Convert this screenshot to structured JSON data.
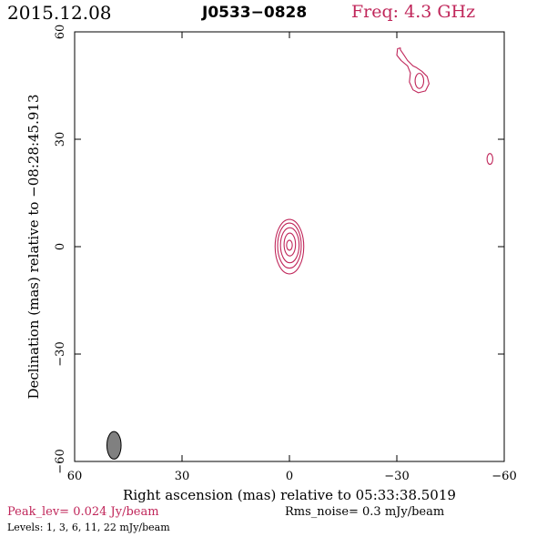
{
  "header": {
    "date": "2015.12.08",
    "source": "J0533−0828",
    "freq": "Freq: 4.3 GHz"
  },
  "footer": {
    "peak": "Peak_lev=  0.024 Jy/beam",
    "noise": "Rms_noise=  0.3 mJy/beam",
    "levels": "Levels:   1,   3,   6,  11,  22 mJy/beam"
  },
  "colors": {
    "contour": "#c0265a",
    "beam_fill": "#808080",
    "axis": "#000000"
  },
  "chart_data": {
    "type": "contour",
    "title": "J0533−0828",
    "xlabel": "Right ascension (mas) relative to 05:33:38.5019",
    "ylabel": "Declination (mas) relative to −08:28:45.913",
    "xlim": [
      60,
      -60
    ],
    "ylim": [
      -60,
      60
    ],
    "xticks": [
      60,
      30,
      0,
      -30,
      -60
    ],
    "yticks": [
      60,
      30,
      0,
      -30,
      -60
    ],
    "xtick_labels": [
      "60",
      "30",
      "0",
      "−30",
      "−60"
    ],
    "ytick_labels": [
      "60",
      "30",
      "0",
      "−30",
      "−60"
    ],
    "contour_levels_mJy": [
      1,
      3,
      6,
      11,
      22
    ],
    "components": [
      {
        "name": "core",
        "contours": [
          {
            "cx": 0.0,
            "cy": 0.0,
            "rx": 4.0,
            "ry": 7.6
          },
          {
            "cx": 0.0,
            "cy": 0.3,
            "rx": 3.3,
            "ry": 6.3
          },
          {
            "cx": -0.1,
            "cy": 0.4,
            "rx": 2.6,
            "ry": 4.9
          },
          {
            "cx": -0.1,
            "cy": 0.6,
            "rx": 1.6,
            "ry": 3.2
          },
          {
            "cx": 0.0,
            "cy": 0.4,
            "rx": 0.8,
            "ry": 1.4
          }
        ]
      },
      {
        "name": "feature-ne",
        "outline": [
          [
            31.0,
            55.0
          ],
          [
            32.0,
            53.5
          ],
          [
            33.0,
            52.0
          ],
          [
            34.5,
            50.5
          ],
          [
            35.5,
            50.0
          ],
          [
            37.0,
            49.0
          ],
          [
            38.5,
            47.5
          ],
          [
            39.0,
            45.5
          ],
          [
            38.0,
            43.5
          ],
          [
            36.0,
            43.0
          ],
          [
            34.5,
            43.8
          ],
          [
            33.5,
            46.0
          ],
          [
            33.8,
            48.5
          ],
          [
            33.0,
            50.5
          ],
          [
            31.2,
            52.0
          ],
          [
            30.0,
            53.5
          ],
          [
            30.2,
            55.3
          ],
          [
            31.0,
            55.5
          ]
        ],
        "inner": {
          "cx": -36.3,
          "cy": 46.3,
          "rx": 1.2,
          "ry": 2.1
        }
      },
      {
        "name": "feature-e",
        "contours": [
          {
            "cx": -56.0,
            "cy": 24.5,
            "rx": 0.8,
            "ry": 1.5
          }
        ]
      }
    ],
    "beam": {
      "x": 49.0,
      "y": -55.5,
      "major_mas": 5.2,
      "minor_mas": 2.2,
      "pa_deg": 0
    }
  }
}
